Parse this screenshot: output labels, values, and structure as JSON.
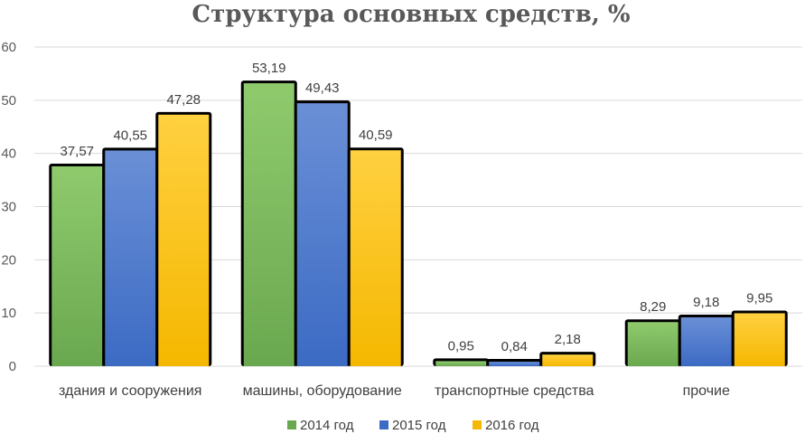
{
  "chart_data": {
    "type": "bar",
    "title": "Структура основных средств, %",
    "xlabel": "",
    "ylabel": "",
    "ylim": [
      0,
      60
    ],
    "yticks": [
      0,
      10,
      20,
      30,
      40,
      50,
      60
    ],
    "grid": true,
    "legend_position": "bottom",
    "categories": [
      "здания и сооружения",
      "машины, оборудование",
      "транспортные средства",
      "прочие"
    ],
    "series": [
      {
        "name": "2014 год",
        "values": [
          37.57,
          53.19,
          0.95,
          8.29
        ],
        "labels": [
          "37,57",
          "53,19",
          "0,95",
          "8,29"
        ],
        "color": "#6aa84f",
        "color_light": "#8fca6d"
      },
      {
        "name": "2015 год",
        "values": [
          40.55,
          49.43,
          0.84,
          9.18
        ],
        "labels": [
          "40,55",
          "49,43",
          "0,84",
          "9,18"
        ],
        "color": "#3c6bc4",
        "color_light": "#6a8fd6"
      },
      {
        "name": "2016 год",
        "values": [
          47.28,
          40.59,
          2.18,
          9.95
        ],
        "labels": [
          "47,28",
          "40,59",
          "2,18",
          "9,95"
        ],
        "color": "#f5b800",
        "color_light": "#ffd040"
      }
    ]
  }
}
